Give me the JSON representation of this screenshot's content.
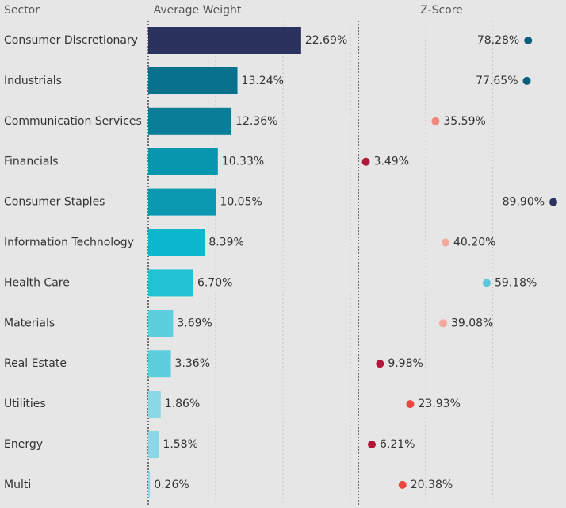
{
  "chart_data": {
    "type": "bar-dot",
    "category_label": "Sector",
    "categories": [
      "Consumer Discretionary",
      "Industrials",
      "Communication Services",
      "Financials",
      "Consumer Staples",
      "Information Technology",
      "Health Care",
      "Materials",
      "Real Estate",
      "Utilities",
      "Energy",
      "Multi"
    ],
    "series": [
      {
        "name": "Average Weight",
        "values": [
          22.69,
          13.24,
          12.36,
          10.33,
          10.05,
          8.39,
          6.7,
          3.69,
          3.36,
          1.86,
          1.58,
          0.26
        ],
        "value_labels": [
          "22.69%",
          "13.24%",
          "12.36%",
          "10.33%",
          "10.05%",
          "8.39%",
          "6.70%",
          "3.69%",
          "3.36%",
          "1.86%",
          "1.58%",
          "0.26%"
        ],
        "colors": [
          "#2c325e",
          "#08728e",
          "#0a7e98",
          "#0896ae",
          "#0a99b0",
          "#0cb6cc",
          "#22c1d4",
          "#5ccede",
          "#5ccede",
          "#8ad8e6",
          "#8ad8e6",
          "#8ad8e6"
        ],
        "xlim": [
          0,
          30
        ],
        "xticks": [
          0,
          10,
          20,
          30
        ]
      },
      {
        "name": "Z-Score",
        "values": [
          78.28,
          77.65,
          35.59,
          3.49,
          89.9,
          40.2,
          59.18,
          39.08,
          9.98,
          23.93,
          6.21,
          20.38
        ],
        "value_labels": [
          "78.28%",
          "77.65%",
          "35.59%",
          "3.49%",
          "89.90%",
          "40.20%",
          "59.18%",
          "39.08%",
          "9.98%",
          "23.93%",
          "6.21%",
          "20.38%"
        ],
        "colors": [
          "#0b5e7e",
          "#0b5e7e",
          "#f0897c",
          "#b3163b",
          "#2c325e",
          "#f3a89e",
          "#5cc6da",
          "#f3a89e",
          "#b3163b",
          "#e6473e",
          "#b3163b",
          "#e6473e"
        ],
        "xlim": [
          0,
          95
        ],
        "xticks": [
          0,
          31,
          62,
          93
        ]
      }
    ]
  }
}
